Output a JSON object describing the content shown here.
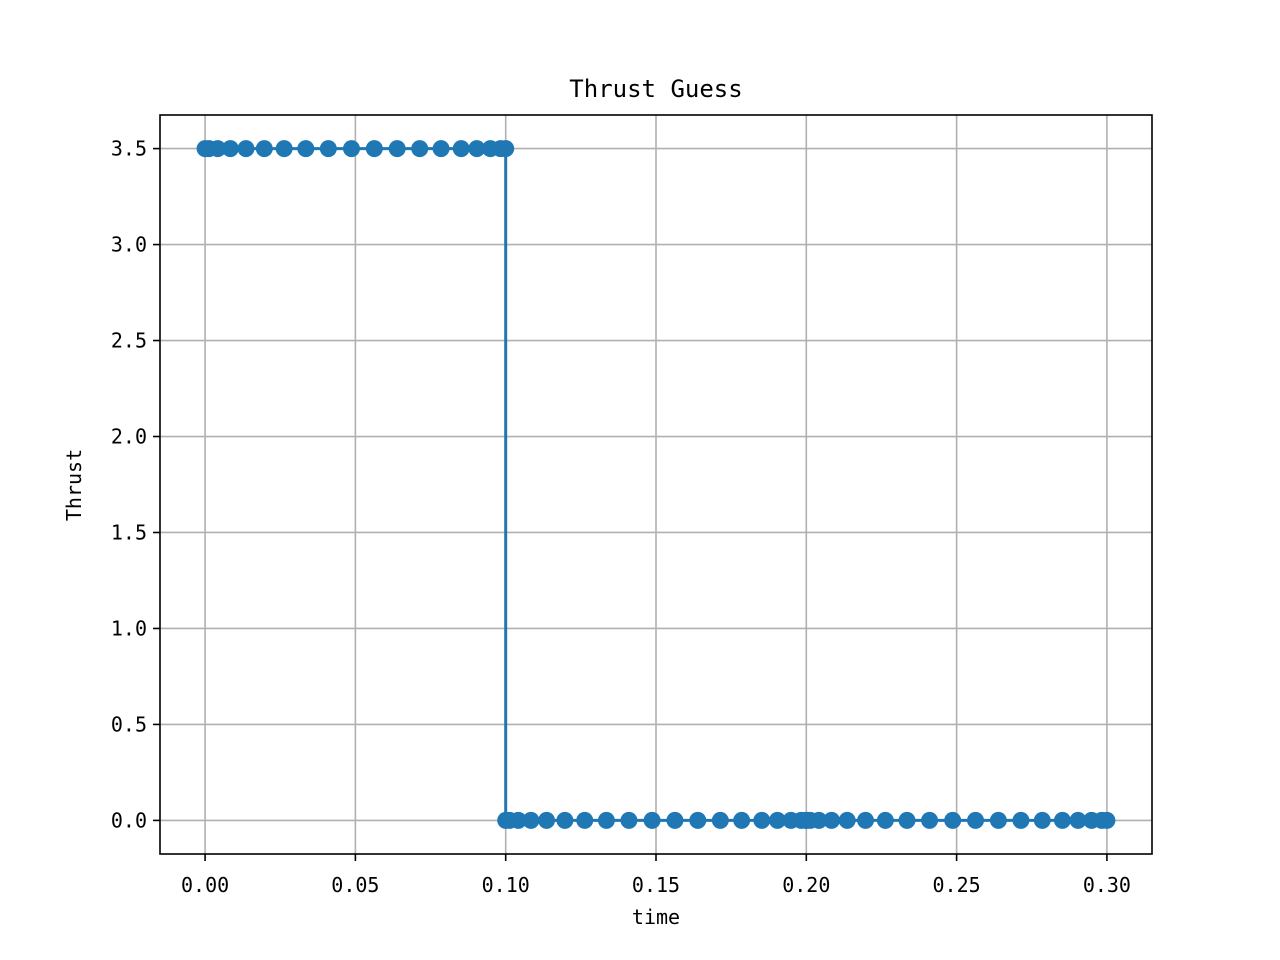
{
  "chart_data": {
    "type": "line",
    "title": "Thrust Guess",
    "xlabel": "time",
    "ylabel": "Thrust",
    "xlim": [
      -0.015,
      0.315
    ],
    "ylim": [
      -0.175,
      3.675
    ],
    "xticks": [
      0.0,
      0.05,
      0.1,
      0.15,
      0.2,
      0.25,
      0.3
    ],
    "xtick_labels": [
      "0.00",
      "0.05",
      "0.10",
      "0.15",
      "0.20",
      "0.25",
      "0.30"
    ],
    "yticks": [
      0.0,
      0.5,
      1.0,
      1.5,
      2.0,
      2.5,
      3.0,
      3.5
    ],
    "ytick_labels": [
      "0.0",
      "0.5",
      "1.0",
      "1.5",
      "2.0",
      "2.5",
      "3.0",
      "3.5"
    ],
    "grid": true,
    "color": "#1f77b4",
    "series": [
      {
        "marker": "circle",
        "x": [
          0.0,
          0.0013,
          0.0042,
          0.0084,
          0.0136,
          0.0197,
          0.0263,
          0.0335,
          0.041,
          0.0487,
          0.0563,
          0.0639,
          0.0714,
          0.0785,
          0.0852,
          0.0904,
          0.0949,
          0.0983,
          0.1,
          0.1,
          0.1013,
          0.1042,
          0.1084,
          0.1136,
          0.1197,
          0.1263,
          0.1335,
          0.141,
          0.1487,
          0.1563,
          0.1639,
          0.1714,
          0.1785,
          0.1852,
          0.1904,
          0.1949,
          0.1983,
          0.2,
          0.2,
          0.2013,
          0.2042,
          0.2084,
          0.2136,
          0.2197,
          0.2263,
          0.2335,
          0.241,
          0.2487,
          0.2563,
          0.2639,
          0.2714,
          0.2785,
          0.2852,
          0.2904,
          0.2949,
          0.2983,
          0.3
        ],
        "y": [
          3.5,
          3.5,
          3.5,
          3.5,
          3.5,
          3.5,
          3.5,
          3.5,
          3.5,
          3.5,
          3.5,
          3.5,
          3.5,
          3.5,
          3.5,
          3.5,
          3.5,
          3.5,
          3.5,
          0.0,
          0.0,
          0.0,
          0.0,
          0.0,
          0.0,
          0.0,
          0.0,
          0.0,
          0.0,
          0.0,
          0.0,
          0.0,
          0.0,
          0.0,
          0.0,
          0.0,
          0.0,
          0.0,
          0.0,
          0.0,
          0.0,
          0.0,
          0.0,
          0.0,
          0.0,
          0.0,
          0.0,
          0.0,
          0.0,
          0.0,
          0.0,
          0.0,
          0.0,
          0.0,
          0.0,
          0.0,
          0.0
        ]
      }
    ]
  }
}
